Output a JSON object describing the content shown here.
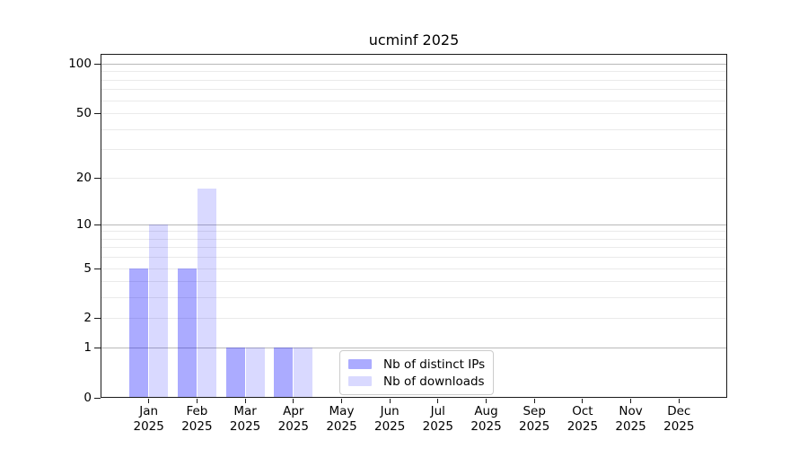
{
  "chart_data": {
    "type": "bar",
    "title": "ucminf 2025",
    "categories": [
      "Jan",
      "Feb",
      "Mar",
      "Apr",
      "May",
      "Jun",
      "Jul",
      "Aug",
      "Sep",
      "Oct",
      "Nov",
      "Dec"
    ],
    "category_year": "2025",
    "series": [
      {
        "name": "Nb of distinct IPs",
        "color": "rgba(0,0,255,0.33)",
        "color_on_white": "#ababff",
        "values": [
          5,
          5,
          1,
          1,
          0,
          0,
          0,
          0,
          0,
          0,
          0,
          0
        ]
      },
      {
        "name": "Nb of downloads",
        "color": "rgba(0,0,255,0.15)",
        "color_on_white": "#d9d9ff",
        "values": [
          10,
          17,
          1,
          1,
          0,
          0,
          0,
          0,
          0,
          0,
          0,
          0
        ]
      }
    ],
    "y_ticks": [
      0,
      1,
      2,
      5,
      10,
      20,
      50,
      100
    ],
    "y_scale": "log10(1+value)",
    "ylim": [
      0,
      115
    ],
    "grid": "horizontal",
    "major_grid_at": [
      1,
      10,
      100
    ],
    "major_grid_color": "#b9b9b9",
    "minor_grid_color": "#eaeaea",
    "axis_color": "#1a1a1a",
    "legend_position": "inside-bottom-center"
  }
}
